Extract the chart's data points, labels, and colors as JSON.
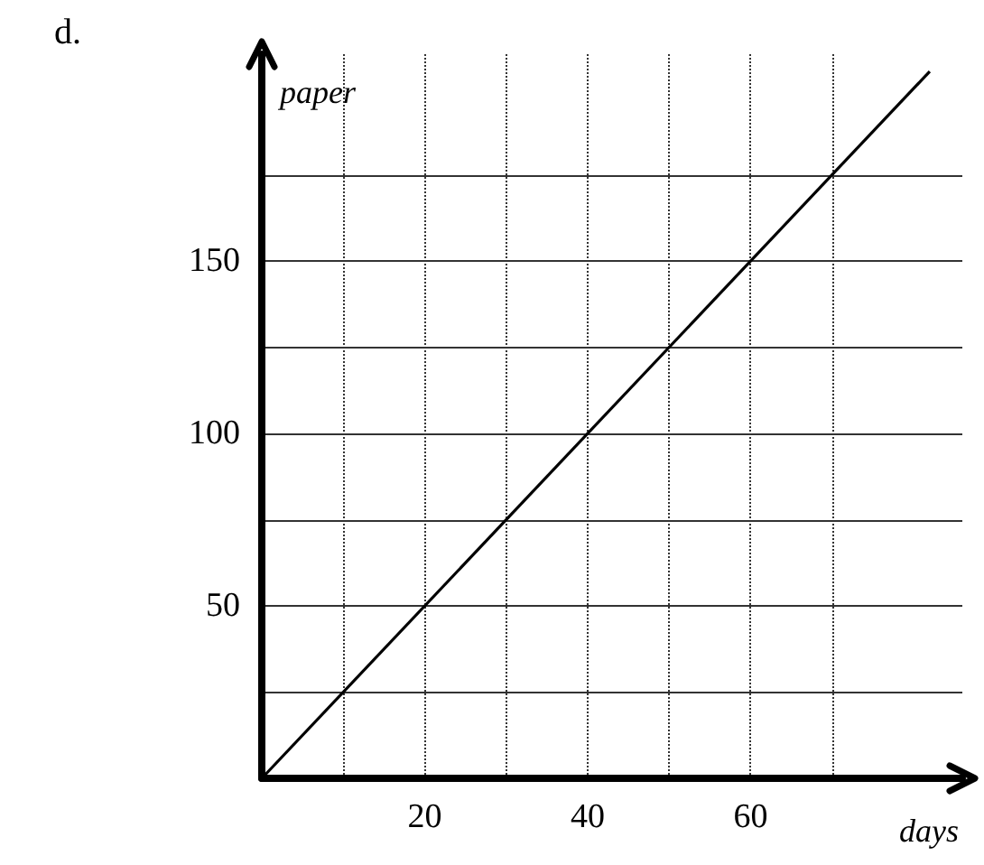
{
  "chart_data": {
    "type": "line",
    "xlabel": "days",
    "ylabel": "paper",
    "annotations": [
      "d."
    ],
    "x": [
      0,
      82
    ],
    "series": [
      {
        "color": "#000000",
        "values": [
          0,
          205
        ]
      }
    ],
    "xlim": [
      0,
      86
    ],
    "ylim": [
      0,
      210
    ],
    "xticks": [
      {
        "value": 10,
        "label": null
      },
      20,
      {
        "value": 30,
        "label": null
      },
      40,
      {
        "value": 50,
        "label": null
      },
      60,
      {
        "value": 70,
        "label": null
      }
    ],
    "yticks": [
      {
        "value": 25,
        "label": null
      },
      50,
      {
        "value": 75,
        "label": null
      },
      100,
      {
        "value": 125,
        "label": null
      },
      150,
      {
        "value": 175,
        "label": null
      }
    ],
    "grid": true,
    "marker": "none",
    "line_style": "solid"
  }
}
